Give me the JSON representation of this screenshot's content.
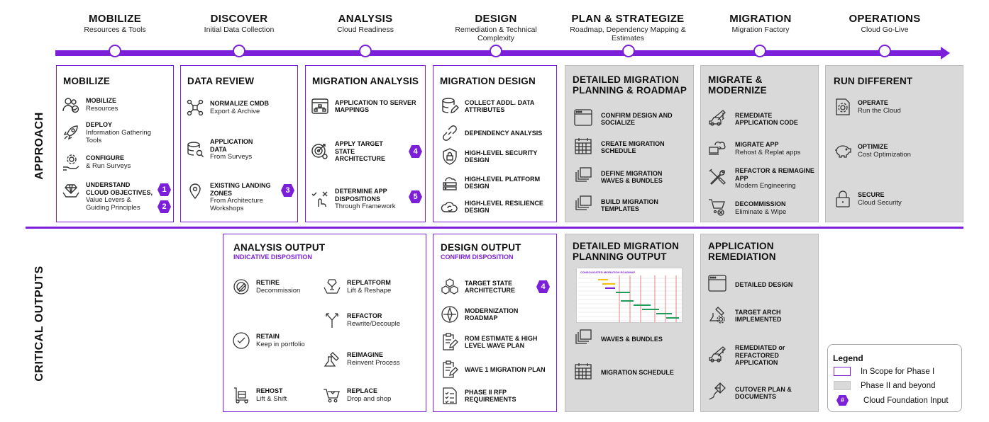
{
  "phases": [
    {
      "title": "MOBILIZE",
      "sub": "Resources & Tools"
    },
    {
      "title": "DISCOVER",
      "sub": "Initial Data Collection"
    },
    {
      "title": "ANALYSIS",
      "sub": "Cloud Readiness"
    },
    {
      "title": "DESIGN",
      "sub": "Remediation & Technical Complexity"
    },
    {
      "title": "PLAN & STRATEGIZE",
      "sub": "Roadmap, Dependency Mapping & Estimates"
    },
    {
      "title": "MIGRATION",
      "sub": "Migration Factory"
    },
    {
      "title": "OPERATIONS",
      "sub": "Cloud Go-Live"
    }
  ],
  "rows": {
    "approach": "APPROACH",
    "outputs": "CRITICAL OUTPUTS"
  },
  "colors": {
    "accent": "#7b1fd8",
    "phase2": "#d9d9d9"
  },
  "approach": {
    "mobilize": {
      "title": "MOBILIZE",
      "items": [
        {
          "t": "MOBILIZE",
          "s": "Resources",
          "icon": "people-check-icon"
        },
        {
          "t": "DEPLOY",
          "s": "Information Gathering Tools",
          "icon": "rocket-icon"
        },
        {
          "t": "CONFIGURE",
          "s": "& Run Surveys",
          "icon": "gear-hand-icon"
        },
        {
          "t": "UNDERSTAND CLOUD OBJECTIVES,",
          "s": "Value Levers & Guiding Principles",
          "icon": "diamond-hand-icon"
        }
      ],
      "badges": [
        "1",
        "2"
      ]
    },
    "data_review": {
      "title": "DATA REVIEW",
      "items": [
        {
          "t": "NORMALIZE CMDB",
          "s": "Export & Archive",
          "icon": "network-icon"
        },
        {
          "t": "APPLICATION DATA",
          "s": "From Surveys",
          "icon": "database-search-icon"
        },
        {
          "t": "EXISTING LANDING ZONES",
          "s": "From Architecture Workshops",
          "icon": "location-pin-icon"
        }
      ],
      "badges": [
        "3"
      ]
    },
    "migration_analysis": {
      "title": "MIGRATION ANALYSIS",
      "items": [
        {
          "t": "APPLICATION TO SERVER MAPPINGS",
          "s": "",
          "icon": "window-map-icon"
        },
        {
          "t": "APPLY TARGET STATE ARCHITECTURE",
          "s": "",
          "icon": "target-gear-icon"
        },
        {
          "t": "DETERMINE APP DISPOSITIONS",
          "s": "Through Framework",
          "icon": "touch-check-icon"
        }
      ],
      "badges": [
        "4",
        "5"
      ]
    },
    "migration_design": {
      "title": "MIGRATION DESIGN",
      "items": [
        {
          "t": "COLLECT ADDL. DATA ATTRIBUTES",
          "icon": "database-edit-icon"
        },
        {
          "t": "DEPENDENCY ANALYSIS",
          "icon": "link-icon"
        },
        {
          "t": "HIGH-LEVEL SECURITY DESIGN",
          "icon": "shield-lock-icon"
        },
        {
          "t": "HIGH-LEVEL PLATFORM DESIGN",
          "icon": "cloud-server-icon"
        },
        {
          "t": "HIGH-LEVEL RESILIENCE DESIGN",
          "icon": "cloud-refresh-icon"
        }
      ]
    },
    "detailed_planning": {
      "title": "DETAILED MIGRATION PLANNING & ROADMAP",
      "items": [
        {
          "t": "CONFIRM DESIGN AND SOCIALIZE",
          "icon": "window-icon"
        },
        {
          "t": "CREATE MIGRATION SCHEDULE",
          "icon": "calendar-icon"
        },
        {
          "t": "DEFINE MIGRATION WAVES & BUNDLES",
          "icon": "stack-icon"
        },
        {
          "t": "BUILD MIGRATION TEMPLATES",
          "icon": "stack-icon"
        }
      ]
    },
    "migrate_modernize": {
      "title": "MIGRATE & MODERNIZE",
      "items": [
        {
          "t": "REMEDIATE APPLICATION CODE",
          "s": "",
          "icon": "crane-icon"
        },
        {
          "t": "MIGRATE APP",
          "s": "Rehost & Replat apps",
          "icon": "cloud-laptop-icon"
        },
        {
          "t": "REFACTOR & REIMAGINE APP",
          "s": "Modern Engineering",
          "icon": "tools-icon"
        },
        {
          "t": "DECOMMISSION",
          "s": "Eliminate & Wipe",
          "icon": "cart-x-icon"
        }
      ]
    },
    "run_different": {
      "title": "RUN DIFFERENT",
      "items": [
        {
          "t": "OPERATE",
          "s": "Run the Cloud",
          "icon": "gear-doc-icon"
        },
        {
          "t": "OPTIMIZE",
          "s": "Cost Optimization",
          "icon": "piggy-bank-icon"
        },
        {
          "t": "SECURE",
          "s": "Cloud Security",
          "icon": "padlock-icon"
        }
      ]
    }
  },
  "outputs": {
    "analysis": {
      "title": "ANALYSIS OUTPUT",
      "sub": "INDICATIVE DISPOSITION",
      "items": [
        {
          "t": "RETIRE",
          "s": "Decommission",
          "icon": "retire-icon"
        },
        {
          "t": "REPLATFORM",
          "s": "Lift & Reshape",
          "icon": "replatform-icon"
        },
        {
          "t": "REFACTOR",
          "s": "Rewrite/Decouple",
          "icon": "split-arrow-icon"
        },
        {
          "t": "RETAIN",
          "s": "Keep in portfolio",
          "icon": "check-circle-icon"
        },
        {
          "t": "REIMAGINE",
          "s": "Reinvent Process",
          "icon": "flask-icon"
        },
        {
          "t": "REHOST",
          "s": "Lift & Shift",
          "icon": "dolly-icon"
        },
        {
          "t": "REPLACE",
          "s": "Drop and shop",
          "icon": "cart-icon"
        }
      ]
    },
    "design": {
      "title": "DESIGN OUTPUT",
      "sub": "CONFIRM DISPOSITION",
      "items": [
        {
          "t": "TARGET STATE ARCHITECTURE",
          "icon": "cubes-icon"
        },
        {
          "t": "MODERNIZATION ROADMAP",
          "icon": "compass-icon"
        },
        {
          "t": "ROM ESTIMATE & HIGH LEVEL WAVE PLAN",
          "icon": "clipboard-edit-icon"
        },
        {
          "t": "WAVE 1 MIGRATION PLAN",
          "icon": "clipboard-edit-icon"
        },
        {
          "t": "PHASE II RFP REQUIREMENTS",
          "icon": "checklist-icon"
        }
      ],
      "badges": [
        "4"
      ]
    },
    "detailed_planning": {
      "title": "DETAILED MIGRATION PLANNING OUTPUT",
      "roadmap_title": "CONSOLIDATED MIGRATION ROADMAP",
      "items": [
        {
          "t": "WAVES & BUNDLES",
          "icon": "stack-icon"
        },
        {
          "t": "MIGRATION SCHEDULE",
          "icon": "calendar-icon"
        }
      ]
    },
    "remediation": {
      "title": "APPLICATION REMEDIATION",
      "items": [
        {
          "t": "DETAILED DESIGN",
          "icon": "window-icon"
        },
        {
          "t": "TARGET ARCH IMPLEMENTED",
          "icon": "wrench-gear-icon"
        },
        {
          "t": "REMEDIATED or REFACTORED APPLICATION",
          "icon": "crane-icon"
        },
        {
          "t": "CUTOVER PLAN & DOCUMENTS",
          "icon": "kite-icon"
        }
      ]
    }
  },
  "legend": {
    "title": "Legend",
    "in_scope": "In Scope for Phase I",
    "phase2": "Phase II and beyond",
    "badge_symbol": "#",
    "badge_label": "Cloud Foundation Input"
  }
}
